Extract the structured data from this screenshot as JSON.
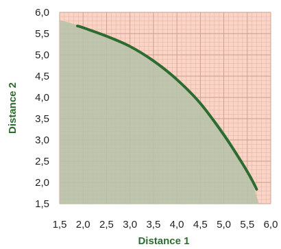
{
  "chart_data": {
    "type": "area",
    "title": "",
    "xlabel": "Distance 1",
    "ylabel": "Distance 2",
    "xlim": [
      1.5,
      6.0
    ],
    "ylim": [
      1.5,
      6.0
    ],
    "x_ticks": [
      "1,5",
      "2,0",
      "2,5",
      "3,0",
      "3,5",
      "4,0",
      "4,5",
      "5,0",
      "5,5",
      "6,0"
    ],
    "y_ticks": [
      "1,5",
      "2,0",
      "2,5",
      "3,0",
      "3,5",
      "4,0",
      "4,5",
      "5,0",
      "5,5",
      "6,0"
    ],
    "grid": true,
    "minor_grid_step": 0.1,
    "region_boundary": {
      "x": [
        1.5,
        2.0,
        2.5,
        3.0,
        3.5,
        4.0,
        4.5,
        5.0,
        5.5,
        5.75
      ],
      "y": [
        5.82,
        5.66,
        5.46,
        5.22,
        4.88,
        4.44,
        3.88,
        3.2,
        2.28,
        1.5
      ]
    },
    "curve": {
      "x": [
        1.88,
        2.0,
        2.5,
        3.0,
        3.5,
        4.0,
        4.5,
        5.0,
        5.4,
        5.6,
        5.7
      ],
      "y": [
        5.68,
        5.64,
        5.44,
        5.2,
        4.86,
        4.42,
        3.86,
        3.12,
        2.44,
        2.06,
        1.84
      ]
    },
    "colors": {
      "background": "#fbd4c6",
      "region": "#b6c3a9",
      "curve": "#2e6b30",
      "grid": "#d9b3a6",
      "axis_title": "#2e6b30",
      "tick_text": "#222222"
    }
  }
}
